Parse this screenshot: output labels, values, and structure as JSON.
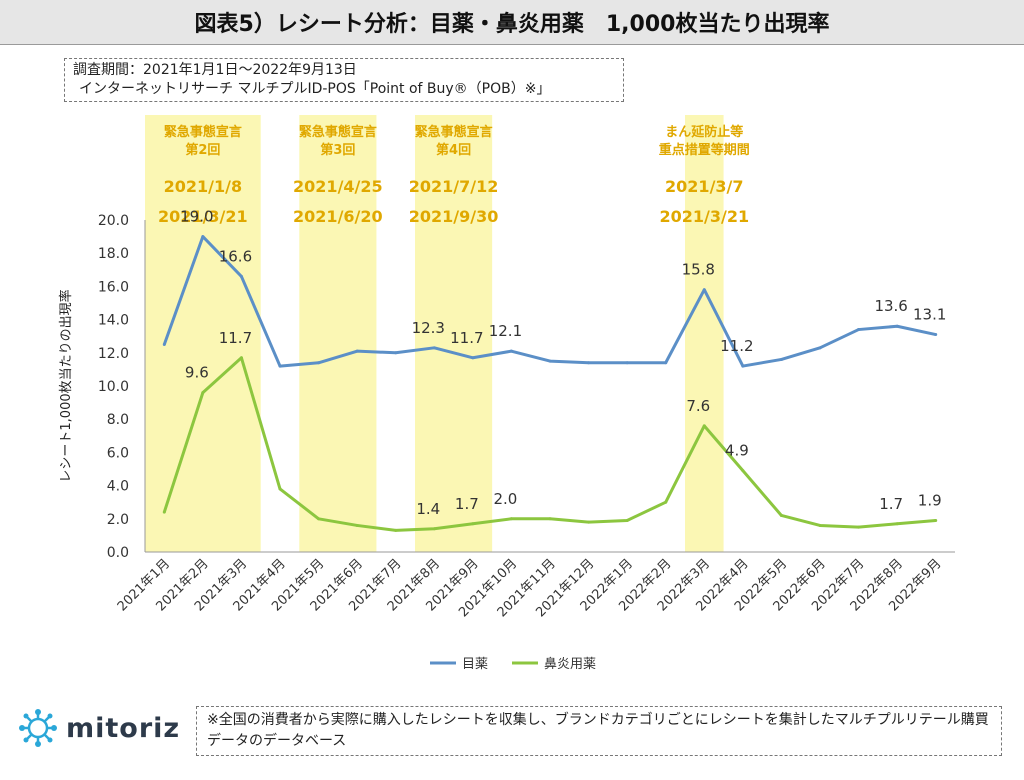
{
  "title": "図表5）レシート分析：目薬・鼻炎用薬　1,000枚当たり出現率",
  "source": {
    "line1": "調査期間：2021年1月1日～2022年9月13日",
    "line2": "インターネットリサーチ マルチプルID-POS「Point of Buy®（POB）※」"
  },
  "note": "※全国の消費者から実際に購入したレシートを収集し、ブランドカテゴリごとにレシートを集計したマルチプルリテール購買データのデータベース",
  "logo": {
    "text": "mitoriz",
    "icon": "network-hub-logo-icon"
  },
  "colors": {
    "series1": "#5b8fc7",
    "series2": "#8cc63f",
    "highlight": "#fbf7b4",
    "highlight_text": "#e0a800"
  },
  "chart_data": {
    "type": "line",
    "ylabel": "レシート1,000枚当たりの出現率",
    "ylim": [
      0,
      20
    ],
    "yticks": [
      "0.0",
      "2.0",
      "4.0",
      "6.0",
      "8.0",
      "10.0",
      "12.0",
      "14.0",
      "16.0",
      "18.0",
      "20.0"
    ],
    "grid": false,
    "legend_position": "bottom",
    "categories": [
      "2021年1月",
      "2021年2月",
      "2021年3月",
      "2021年4月",
      "2021年5月",
      "2021年6月",
      "2021年7月",
      "2021年8月",
      "2021年9月",
      "2021年10月",
      "2021年11月",
      "2021年12月",
      "2022年1月",
      "2022年2月",
      "2022年3月",
      "2022年4月",
      "2022年5月",
      "2022年6月",
      "2022年7月",
      "2022年8月",
      "2022年9月"
    ],
    "series": [
      {
        "name": "目薬",
        "values": [
          12.5,
          19.0,
          16.6,
          11.2,
          11.4,
          12.1,
          12.0,
          12.3,
          11.7,
          12.1,
          11.5,
          11.4,
          11.4,
          11.4,
          15.8,
          11.2,
          11.6,
          12.3,
          13.4,
          13.6,
          13.1
        ],
        "labels": [
          {
            "index": 1,
            "text": "19.0"
          },
          {
            "index": 2,
            "text": "16.6"
          },
          {
            "index": 7,
            "text": "12.3"
          },
          {
            "index": 8,
            "text": "11.7"
          },
          {
            "index": 9,
            "text": "12.1"
          },
          {
            "index": 14,
            "text": "15.8"
          },
          {
            "index": 15,
            "text": "11.2"
          },
          {
            "index": 19,
            "text": "13.6"
          },
          {
            "index": 20,
            "text": "13.1"
          }
        ]
      },
      {
        "name": "鼻炎用薬",
        "values": [
          2.4,
          9.6,
          11.7,
          3.8,
          2.0,
          1.6,
          1.3,
          1.4,
          1.7,
          2.0,
          2.0,
          1.8,
          1.9,
          3.0,
          7.6,
          4.9,
          2.2,
          1.6,
          1.5,
          1.7,
          1.9
        ],
        "labels": [
          {
            "index": 1,
            "text": "9.6"
          },
          {
            "index": 2,
            "text": "11.7"
          },
          {
            "index": 7,
            "text": "1.4"
          },
          {
            "index": 8,
            "text": "1.7"
          },
          {
            "index": 9,
            "text": "2.0"
          },
          {
            "index": 14,
            "text": "7.6"
          },
          {
            "index": 15,
            "text": "4.9"
          },
          {
            "index": 19,
            "text": "1.7"
          },
          {
            "index": 20,
            "text": "1.9"
          }
        ]
      }
    ],
    "highlights": [
      {
        "from": 0,
        "to": 2,
        "label": [
          "緊急事態宣言",
          "第2回"
        ],
        "dates": [
          "2021/1/8",
          "2021/3/21"
        ]
      },
      {
        "from": 4,
        "to": 5,
        "label": [
          "緊急事態宣言",
          "第3回"
        ],
        "dates": [
          "2021/4/25",
          "2021/6/20"
        ]
      },
      {
        "from": 7,
        "to": 8,
        "label": [
          "緊急事態宣言",
          "第4回"
        ],
        "dates": [
          "2021/7/12",
          "2021/9/30"
        ]
      },
      {
        "from": 14,
        "to": 14,
        "label": [
          "まん延防止等",
          "重点措置等期間"
        ],
        "dates": [
          "2021/3/7",
          "2021/3/21"
        ]
      }
    ]
  }
}
